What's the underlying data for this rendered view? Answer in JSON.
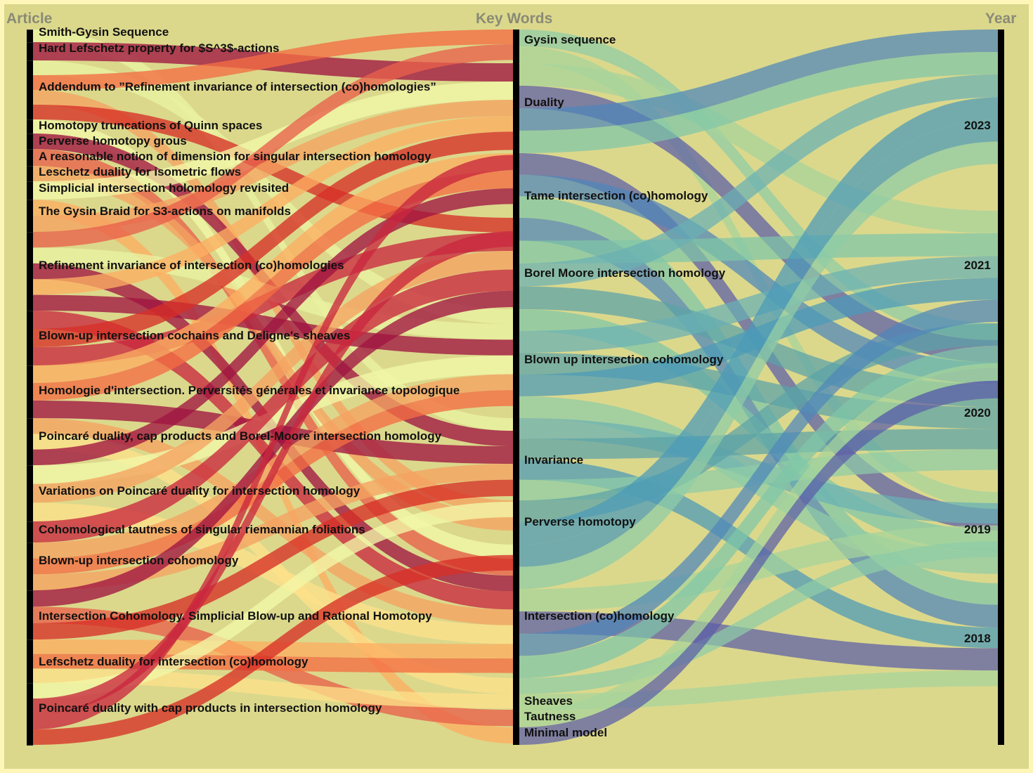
{
  "columns": {
    "article": "Article",
    "keywords": "Key Words",
    "year": "Year"
  },
  "articles": [
    "Smith-Gysin Sequence",
    "Hard Lefschetz property for $S^3$-actions",
    "Addendum to ”Refinement invariance of intersection (co)homologies”",
    "Homotopy truncations of Quinn spaces",
    "Perverse homotopy grous",
    "A reasonable notion of dimension for singular intersection homology",
    "Leschetz duality for isometric flows",
    "Simplicial intersection holomology revisited",
    "The Gysin Braid for S3-actions on manifolds",
    "Refinement invariance of intersection (co)homologies",
    "Blown-up intersection cochains and Deligne's sheaves",
    "Homologie d'intersection. Perversités générales et invariance topologique",
    "Poincaré duality, cap products and Borel-Moore intersection homology",
    "Variations on Poincaré duality for intersection homology",
    "Cohomological tautness of singular riemannian foliations",
    "Blown-up intersection cohomology",
    "Intersection Cohomology. Simplicial Blow-up and Rational Homotopy",
    "Lefschetz duality for intersection (co)homology",
    "Poincaré duality with cap products in intersection homology"
  ],
  "keywords": [
    "Gysin sequence",
    "Duality",
    "Tame intersection (co)homology",
    "Borel Moore intersection homology",
    "Blown up intersection cohomology",
    "Invariance",
    "Perverse homotopy",
    "Intersection (co)homology",
    "Sheaves",
    "Tautness",
    "Minimal model"
  ],
  "years": [
    "2023",
    "2021",
    "2020",
    "2019",
    "2018"
  ],
  "colors": {
    "background_outer": "#fdf6b8",
    "background": "#dbd88c",
    "article_palette": [
      "#f2f7a8",
      "#e8604a",
      "#a01440",
      "#c9283e",
      "#f5a362",
      "#e9f2a2",
      "#fee08b",
      "#d73027",
      "#f46d43",
      "#fdae61"
    ],
    "keyword_palette": [
      "#8fcca6",
      "#a6d49b",
      "#5b5da8",
      "#4f87ba",
      "#7fc6a8",
      "#6ab0b4",
      "#5ca2a8",
      "#4b9ab8"
    ]
  }
}
